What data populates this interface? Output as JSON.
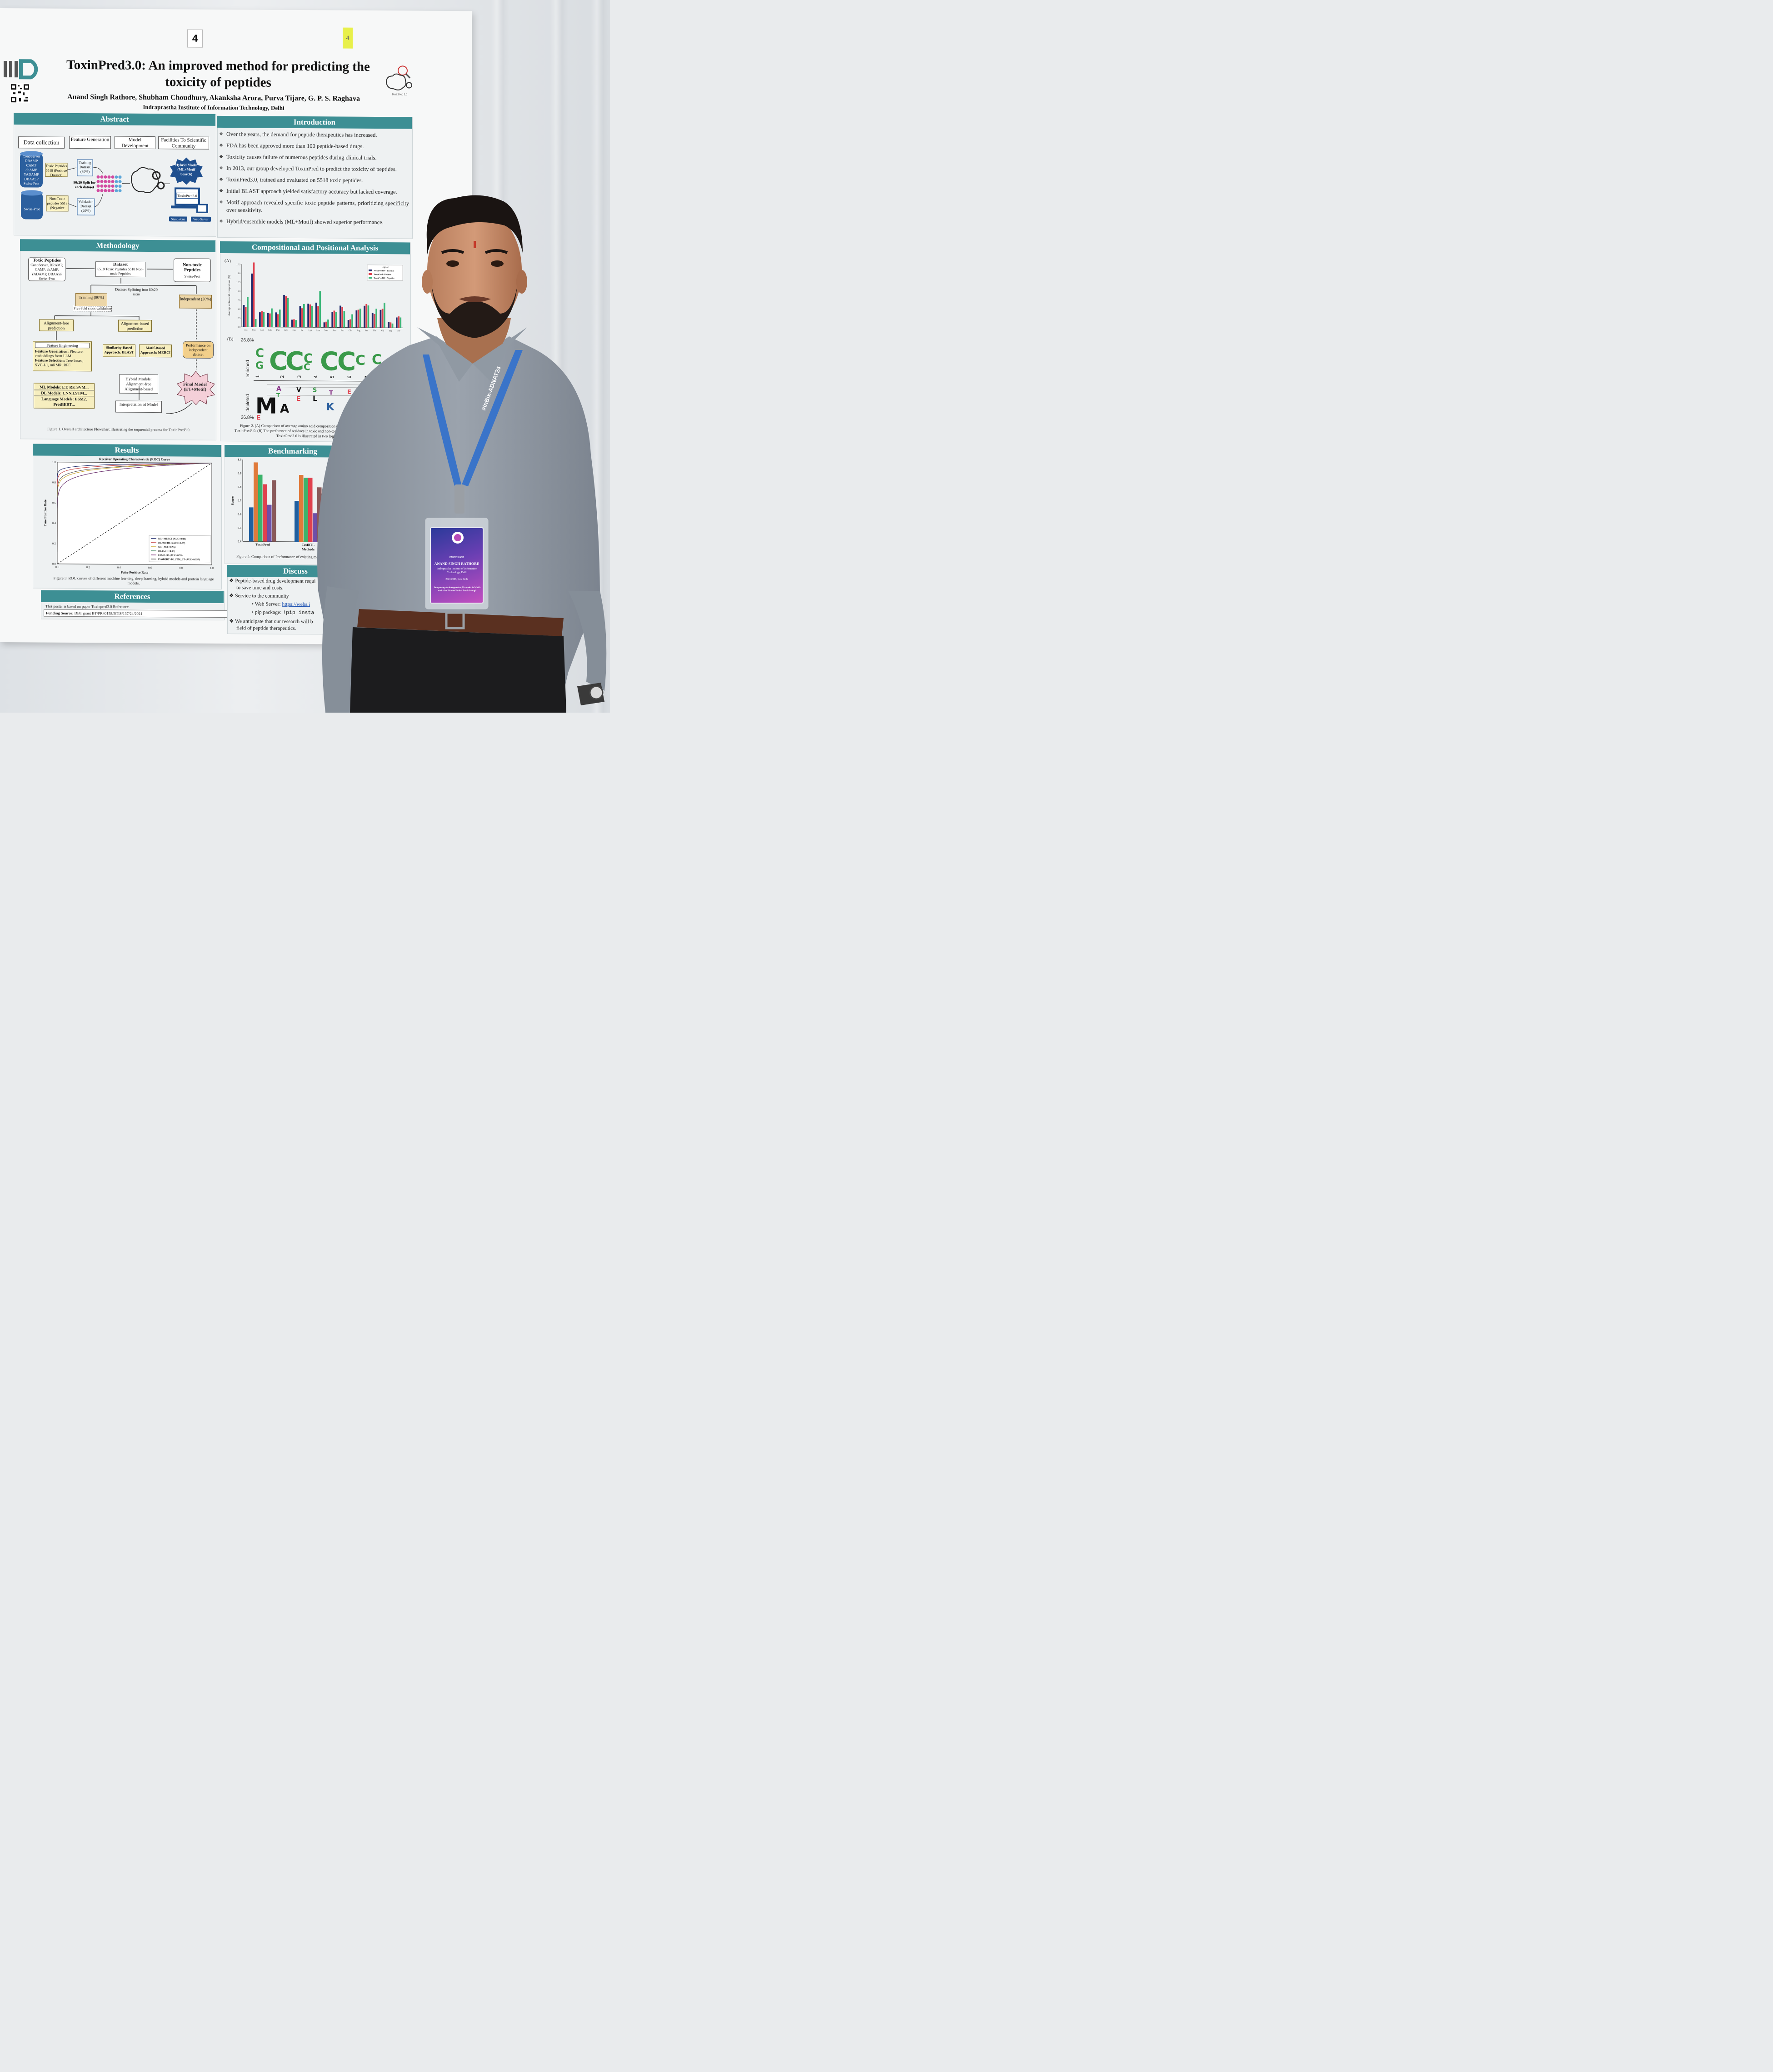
{
  "scene": {
    "description_colors": {
      "accent": "#3d8f94",
      "poster_bg": "#f7f8f8",
      "shirt": "#8d96a0",
      "badge": "#6a3fb3"
    }
  },
  "poster": {
    "board_number": "4",
    "sticky_note": "4",
    "logo_icon": "iiitd-logo-icon",
    "title": "ToxinPred3.0: An improved method for predicting the toxicity of peptides",
    "authors": "Anand Singh Rathore, Shubham Choudhury, Akanksha Arora, Purva Tijare, G. P. S. Raghava",
    "institution": "Indraprastha Institute of Information Technology, Delhi",
    "brain_logo_caption": "ToxinPred 3.0",
    "sections": {
      "abstract": "Abstract",
      "introduction": "Introduction",
      "methodology": "Methodology",
      "compositional": "Compositional and Positional Analysis",
      "results": "Results",
      "benchmarking": "Benchmarking",
      "references": "References",
      "discussion": "Discuss"
    },
    "abstract": {
      "steps": [
        "Data collection",
        "Feature Generation",
        "Model Development",
        "Facilities To Scientific Community"
      ],
      "databases": [
        "ConoServer",
        "DRAMP",
        "CAMP",
        "dbAMP",
        "YADAMP",
        "DBAASP",
        "Swiss-Prot"
      ],
      "swissprot": "Swiss-Prot",
      "toxic": "Toxic Peptides 5518 (Positive Dataset)",
      "nontoxic": "Non-Toxic peptides 5518 (Negative Dataset)",
      "training": "Training Dataset (80%)",
      "validation": "Validation Dataset (20%)",
      "split": "80:20 Split for each dataset",
      "hybrid": "Hybrid Model (ML+Motif Search)",
      "screen": "ToxinPred3.0",
      "standalone": "Standalone",
      "webserver": "Web-Server"
    },
    "introduction": [
      "Over the years, the demand for peptide therapeutics has increased.",
      "FDA has been approved more than 100 peptide-based drugs.",
      "Toxicity causes failure of numerous peptides during clinical trials.",
      "In 2013, our group developed ToxinPred to predict the toxicity of peptides.",
      "ToxinPred3.0, trained and evaluated on 5518 toxic peptides.",
      "Initial BLAST approach yielded satisfactory accuracy but lacked coverage.",
      "Motif approach revealed specific toxic peptide patterns, prioritizing specificity over sensitivity.",
      "Hybrid/ensemble models (ML+Motif) showed superior performance."
    ],
    "methodology": {
      "toxic_title": "Toxic Peptides",
      "toxic_sources": "ConoServer, DRAMP, CAMP, dbAMP, YADAMP, DBAASP Swiss-Prot",
      "dataset_title": "Dataset",
      "dataset_desc": "5518 Toxic Peptides 5518 Non-toxic Peptides",
      "nontoxic_title": "Non-toxic Peptides",
      "nontoxic_src": "Swiss-Prot",
      "split_label": "Dataset Splitting into 80:20 ratio",
      "training": "Training (80%)",
      "fivefold": "Five-fold cross validation",
      "independent": "Independent (20%)",
      "align_free": "Alignment-free prediction",
      "align_based": "Alignment-based prediction",
      "feat_eng": "Feature Engineering",
      "feat_gen_label": "Feature Generation:",
      "feat_gen_text": "Pfeature, embeddings from LLM",
      "feat_sel_label": "Feature Selection:",
      "feat_sel_text": "Tree based, SVC-L1, mRMR, RFE...",
      "similarity": "Similarity-Based Approach: BLAST",
      "motif": "Motif-Based Approach: MERCI",
      "performance": "Performance on independent dataset",
      "ml_models": "ML Models: ET, RF, SVM...",
      "dl_models": "DL Models: CNN,LSTM...",
      "lang_models": "Language Models: ESM2, ProtBERT...",
      "hybrid_models": "Hybrid Models: Alignment-free Alignment-based",
      "interpretation": "Interpretation of Model",
      "final_model": "Final Model (ET+Motif)",
      "figure_caption": "Figure 1. Overall architecture Flowchart illustrating the sequential process for ToxinPred3.0."
    },
    "composition": {
      "panel_a": "(A)",
      "panel_b": "(B)",
      "legend_title": "Legend",
      "ylabel": "Average amino acid composition (%)",
      "logo_top": "26.8%",
      "logo_bottom": "26.8%",
      "enriched": "enriched",
      "depleted": "depleted",
      "positions": [
        "1",
        "2",
        "3",
        "4",
        "5",
        "6",
        "7",
        "8"
      ],
      "figure_caption_1": "Figure 2. (A) Comparison of average amino acid composition (AA",
      "figure_caption_2": "ToxinPred3.0. (B) The preference of residues in toxic and non-toxic p",
      "figure_caption_3": "ToxinPred3.0 is illustrated in two logo sam"
    },
    "results": {
      "figure_caption": "Figure 3. ROC curves of different machine learning, deep learning, hybrid models and protein language models."
    },
    "benchmarking": {
      "figure_caption": "Figure 4: Comparison of Performance of existing metho"
    },
    "references": {
      "text": "This poster is based on paper Toxinpred3.0 Reference.",
      "funding_label": "Funding Source:",
      "funding_text": "DBT grant BT/PR40158/BTIS/137/24/2021"
    },
    "discussion": {
      "item1": "Peptide-based drug development requi",
      "item1b": "to save time and costs.",
      "item2": "Service to the community",
      "web_label": "Web Server:",
      "web_link": "https://webs.i",
      "pip_label": "pip package:",
      "pip_cmd": "!pip insta",
      "item3": "We anticipate that our research will b",
      "item3c": "entists",
      "item3b": "field of peptide therapeutics."
    }
  },
  "badge": {
    "role": "PARTICIPANT",
    "name": "ANAND SINGH RATHORE",
    "institution": "Indraprastha Institute of Information Technology, Delhi",
    "date": "2024 2025, New Delhi",
    "conference": "Integrating Archaeogenetics, Forensics & Multi-omics for Human Health Breakthrough"
  },
  "lanyard": {
    "text": "#InBix-ADNAT24"
  },
  "chart_data": [
    {
      "type": "bar",
      "title": "",
      "xlabel": "",
      "ylabel": "Average amino acid composition (%)",
      "ylim": [
        0,
        17.5
      ],
      "yticks": [
        "0.0",
        "2.5",
        "5.0",
        "7.5",
        "10.0",
        "12.5",
        "15.0",
        "17.5"
      ],
      "categories": [
        "Ala",
        "Cys",
        "Asp",
        "Glu",
        "Phe",
        "Gly",
        "His",
        "Ile",
        "Lys",
        "Leu",
        "Met",
        "Asn",
        "Pro",
        "Gln",
        "Arg",
        "Ser",
        "Thr",
        "Val",
        "Trp",
        "Tyr"
      ],
      "legend": "top-right",
      "series": [
        {
          "name": "ToxinPred3.0 - Positive",
          "color": "#1f2a6b",
          "values": [
            6.1,
            14.9,
            4.1,
            3.9,
            4.1,
            9.0,
            2.1,
            5.9,
            6.6,
            6.9,
            1.4,
            4.3,
            6.1,
            2.1,
            4.8,
            6.1,
            4.1,
            5.0,
            1.6,
            2.9
          ]
        },
        {
          "name": "ToxinPred - Positive",
          "color": "#e0414e",
          "values": [
            5.6,
            18.0,
            4.4,
            3.8,
            3.6,
            8.6,
            2.2,
            5.3,
            6.4,
            5.9,
            1.6,
            4.7,
            5.7,
            2.3,
            5.0,
            6.6,
            3.8,
            5.3,
            1.5,
            3.2
          ]
        },
        {
          "name": "ToxinPred3.0 - Negative",
          "color": "#3bb779",
          "values": [
            8.3,
            2.2,
            4.2,
            5.2,
            4.9,
            8.1,
            2.0,
            6.5,
            6.0,
            10.1,
            2.2,
            4.3,
            4.6,
            3.7,
            5.3,
            6.2,
            5.3,
            7.0,
            1.2,
            2.9
          ]
        }
      ]
    },
    {
      "type": "line",
      "title": "Receiver Operating Characteristic (ROC) Curve",
      "xlabel": "False Positive Rate",
      "ylabel": "True Positive Rate",
      "xlim": [
        0,
        1
      ],
      "ylim": [
        0,
        1
      ],
      "xticks": [
        "0.0",
        "0.2",
        "0.4",
        "0.6",
        "0.8",
        "1.0"
      ],
      "yticks": [
        "0.0",
        "0.2",
        "0.4",
        "0.6",
        "0.8",
        "1.0"
      ],
      "legend": "bottom-right",
      "series": [
        {
          "name": "ML+MERCI (AUC=0.98)",
          "color": "#1f2a6b",
          "auc": 0.98
        },
        {
          "name": "DL+MERCI (AUC=0.97)",
          "color": "#c23b3b",
          "auc": 0.97
        },
        {
          "name": "ML (AUC=0.95)",
          "color": "#c9a227",
          "auc": 0.95
        },
        {
          "name": "DL (AUC=0.93)",
          "color": "#2f7a4f",
          "auc": 0.93
        },
        {
          "name": "ESM2-t33 (AUC=0.93)",
          "color": "#7a2f7a",
          "auc": 0.93
        },
        {
          "name": "ProtBERT+BiLSTM_ET (AUC=0.957)",
          "color": "#555555",
          "auc": 0.957
        }
      ]
    },
    {
      "type": "bar",
      "title": "",
      "xlabel": "Methods",
      "ylabel": "Scores",
      "ylim": [
        0.4,
        1.0
      ],
      "yticks": [
        "0.4",
        "0.5",
        "0.6",
        "0.7",
        "0.8",
        "0.9",
        "1.0"
      ],
      "categories": [
        "ToxinPred",
        "ToxIBTL"
      ],
      "series": [
        {
          "color": "#1f5fa0",
          "values": [
            0.65,
            0.7
          ]
        },
        {
          "color": "#e07a3a",
          "values": [
            0.98,
            0.89
          ]
        },
        {
          "color": "#3bb36b",
          "values": [
            0.89,
            0.87
          ]
        },
        {
          "color": "#e0414e",
          "values": [
            0.82,
            0.87
          ]
        },
        {
          "color": "#6e4fa8",
          "values": [
            0.67,
            0.61
          ]
        },
        {
          "color": "#8a5a5a",
          "values": [
            0.85,
            0.8
          ]
        }
      ]
    }
  ]
}
